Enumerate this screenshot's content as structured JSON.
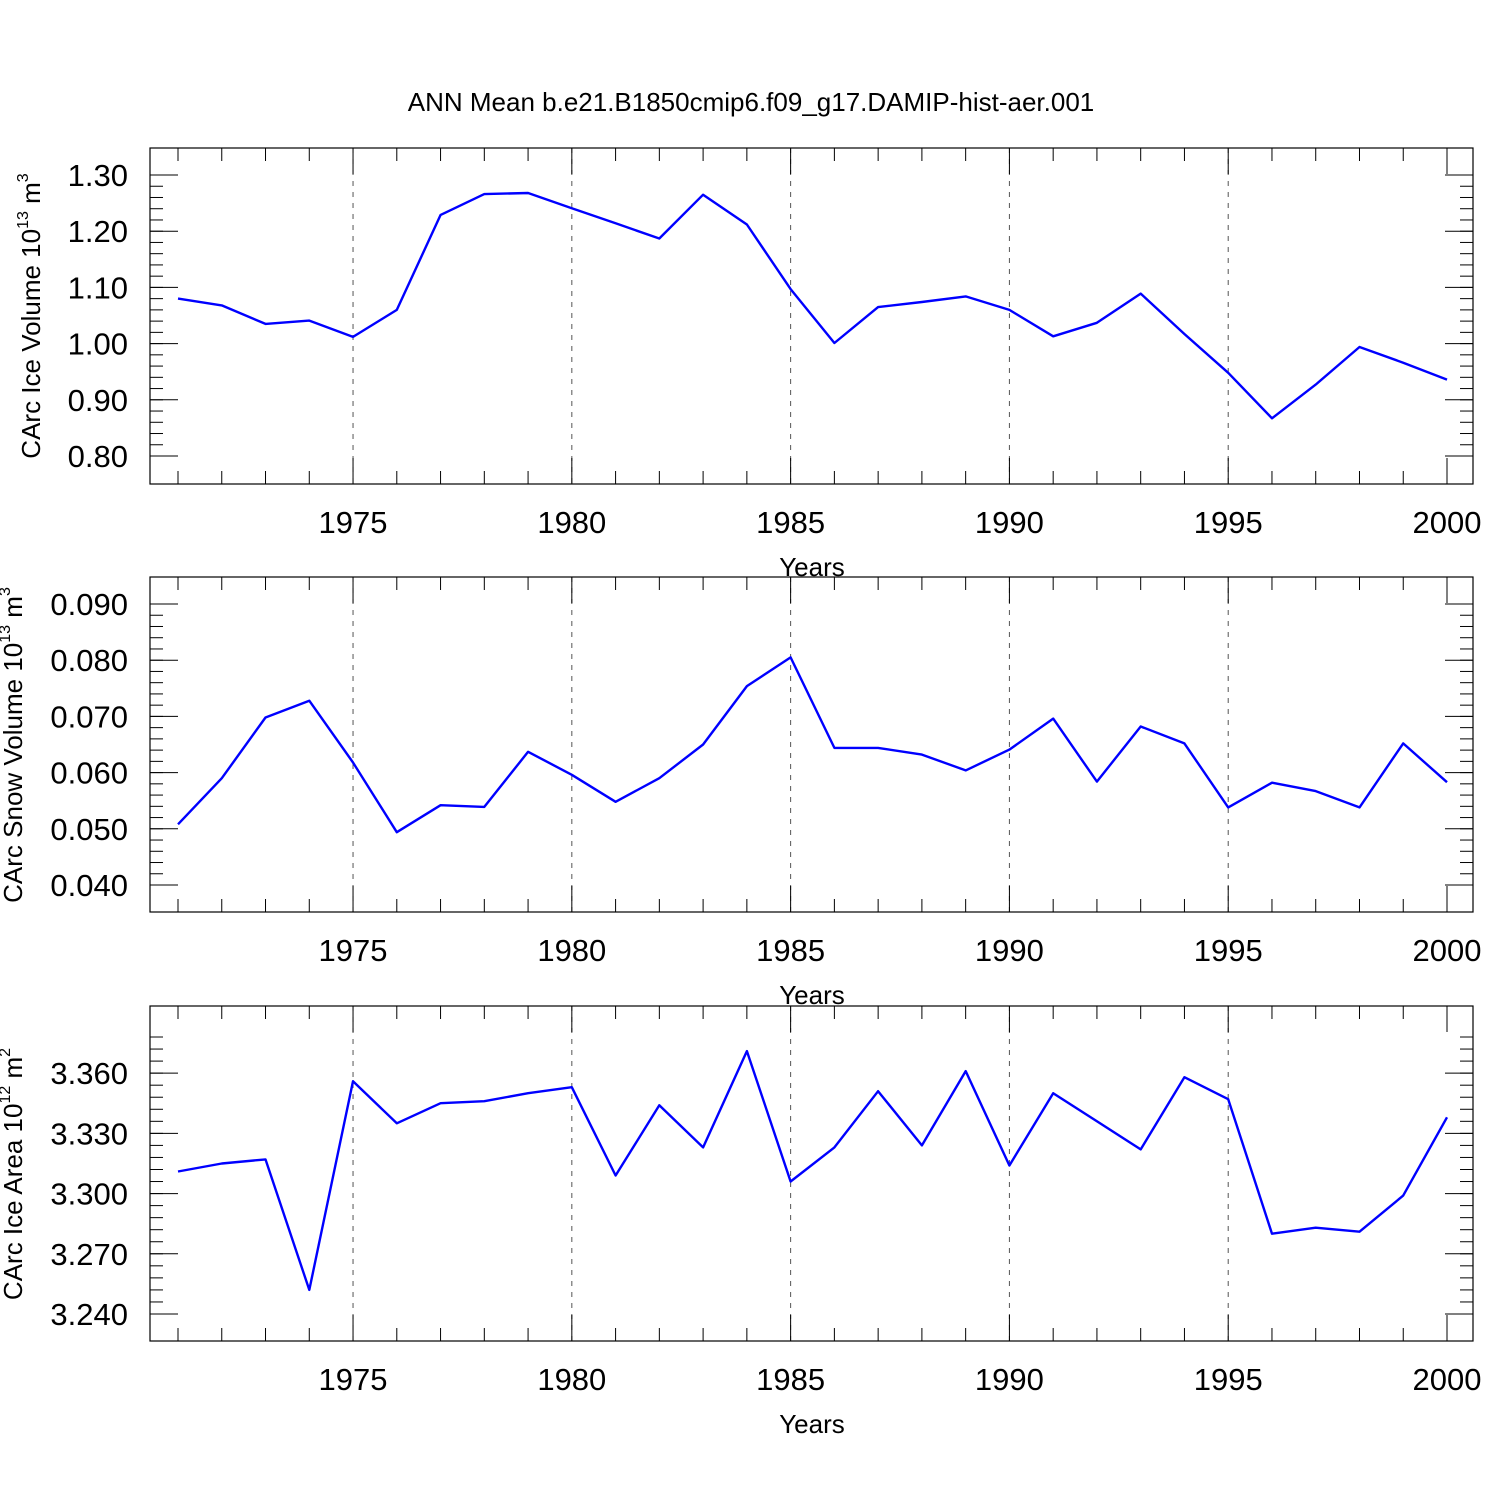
{
  "title": "ANN Mean b.e21.B1850cmip6.f09_g17.DAMIP-hist-aer.001",
  "colors": {
    "series": "#0000ff",
    "frame": "#000000",
    "grid": "#555555"
  },
  "chart_data": [
    {
      "type": "line",
      "ylabel_main": "CArc Ice Volume 10",
      "ylabel_exp": "13",
      "ylabel_unit": " m",
      "ylabel_unit_exp": "3",
      "xlabel": "Years",
      "xlim": [
        1971,
        2000
      ],
      "ylim": [
        0.8,
        1.3
      ],
      "xticks": [
        1975,
        1980,
        1985,
        1990,
        1995,
        2000
      ],
      "xtick_labels": [
        "1975",
        "1980",
        "1985",
        "1990",
        "1995",
        "2000"
      ],
      "yticks": [
        0.8,
        0.9,
        1.0,
        1.1,
        1.2,
        1.3
      ],
      "ytick_labels": [
        "0.80",
        "0.90",
        "1.00",
        "1.10",
        "1.20",
        "1.30"
      ],
      "grid": "vertical dashed at labeled years",
      "x": [
        1971,
        1972,
        1973,
        1974,
        1975,
        1976,
        1977,
        1978,
        1979,
        1980,
        1981,
        1982,
        1983,
        1984,
        1985,
        1986,
        1987,
        1988,
        1989,
        1990,
        1991,
        1992,
        1993,
        1994,
        1995,
        1996,
        1997,
        1998,
        1999,
        2000
      ],
      "values": [
        1.08,
        1.068,
        1.035,
        1.041,
        1.012,
        1.06,
        1.229,
        1.266,
        1.268,
        1.241,
        1.214,
        1.187,
        1.265,
        1.212,
        1.097,
        1.001,
        1.065,
        1.074,
        1.084,
        1.06,
        1.013,
        1.037,
        1.089,
        1.017,
        0.948,
        0.867,
        0.927,
        0.994,
        0.966,
        0.936
      ]
    },
    {
      "type": "line",
      "ylabel_main": "CArc Snow Volume 10",
      "ylabel_exp": "13",
      "ylabel_unit": " m",
      "ylabel_unit_exp": "3",
      "xlabel": "Years",
      "xlim": [
        1971,
        2000
      ],
      "ylim": [
        0.04,
        0.09
      ],
      "xticks": [
        1975,
        1980,
        1985,
        1990,
        1995,
        2000
      ],
      "xtick_labels": [
        "1975",
        "1980",
        "1985",
        "1990",
        "1995",
        "2000"
      ],
      "yticks": [
        0.04,
        0.05,
        0.06,
        0.07,
        0.08,
        0.09
      ],
      "ytick_labels": [
        "0.040",
        "0.050",
        "0.060",
        "0.070",
        "0.080",
        "0.090"
      ],
      "grid": "vertical dashed at labeled years",
      "x": [
        1971,
        1972,
        1973,
        1974,
        1975,
        1976,
        1977,
        1978,
        1979,
        1980,
        1981,
        1982,
        1983,
        1984,
        1985,
        1986,
        1987,
        1988,
        1989,
        1990,
        1991,
        1992,
        1993,
        1994,
        1995,
        1996,
        1997,
        1998,
        1999,
        2000
      ],
      "values": [
        0.0508,
        0.059,
        0.0698,
        0.0728,
        0.0618,
        0.0494,
        0.0542,
        0.0539,
        0.0637,
        0.0596,
        0.0548,
        0.059,
        0.065,
        0.0754,
        0.0805,
        0.0644,
        0.0644,
        0.0632,
        0.0604,
        0.0641,
        0.0696,
        0.0584,
        0.0682,
        0.0652,
        0.0538,
        0.0582,
        0.0567,
        0.0538,
        0.0652,
        0.0583
      ]
    },
    {
      "type": "line",
      "ylabel_main": "CArc Ice Area 10",
      "ylabel_exp": "12",
      "ylabel_unit": " m",
      "ylabel_unit_exp": "2",
      "xlabel": "Years",
      "xlim": [
        1971,
        2000
      ],
      "ylim": [
        3.24,
        3.38
      ],
      "xticks": [
        1975,
        1980,
        1985,
        1990,
        1995,
        2000
      ],
      "xtick_labels": [
        "1975",
        "1980",
        "1985",
        "1990",
        "1995",
        "2000"
      ],
      "yticks": [
        3.24,
        3.27,
        3.3,
        3.33,
        3.36
      ],
      "ytick_labels": [
        "3.240",
        "3.270",
        "3.300",
        "3.330",
        "3.360"
      ],
      "grid": "vertical dashed at labeled years",
      "x": [
        1971,
        1972,
        1973,
        1974,
        1975,
        1976,
        1977,
        1978,
        1979,
        1980,
        1981,
        1982,
        1983,
        1984,
        1985,
        1986,
        1987,
        1988,
        1989,
        1990,
        1991,
        1992,
        1993,
        1994,
        1995,
        1996,
        1997,
        1998,
        1999,
        2000
      ],
      "values": [
        3.311,
        3.315,
        3.317,
        3.252,
        3.356,
        3.335,
        3.345,
        3.346,
        3.35,
        3.353,
        3.309,
        3.344,
        3.323,
        3.371,
        3.306,
        3.323,
        3.351,
        3.324,
        3.361,
        3.314,
        3.35,
        3.336,
        3.322,
        3.358,
        3.347,
        3.28,
        3.283,
        3.281,
        3.299,
        3.338
      ]
    }
  ]
}
